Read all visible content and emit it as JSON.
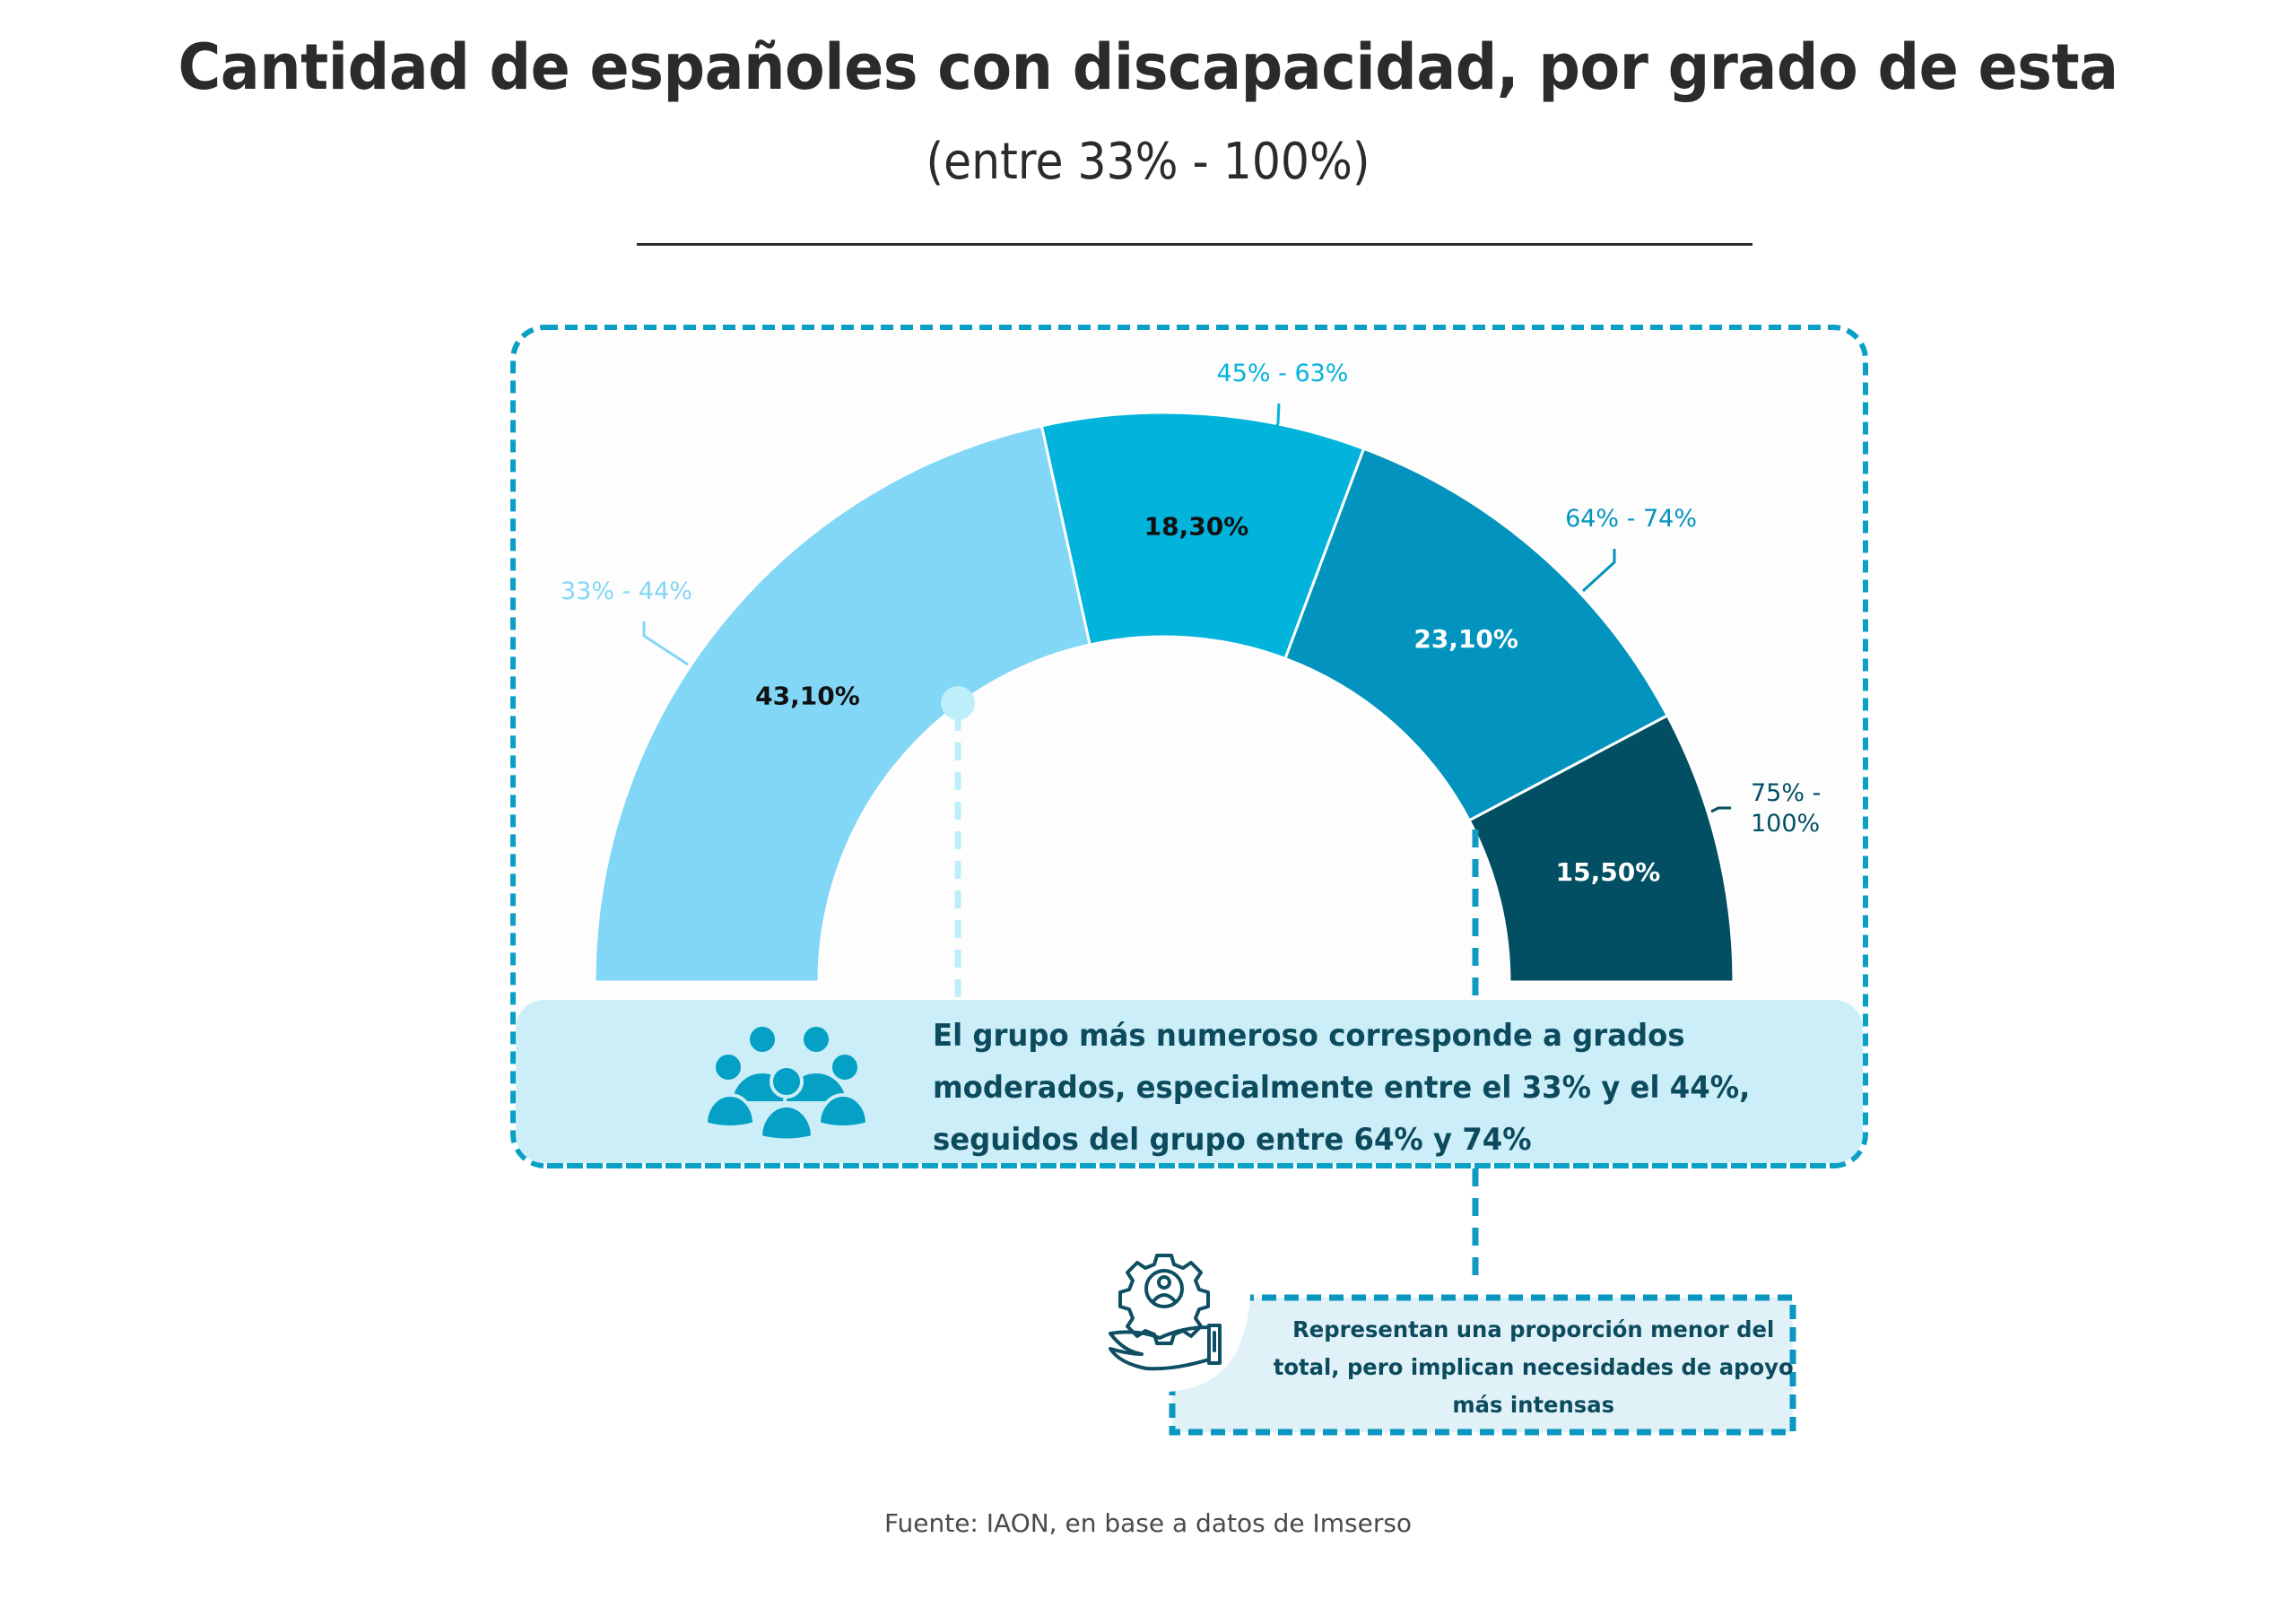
{
  "header": {
    "title": "Cantidad de españoles con discapacidad, por grado de esta",
    "subtitle": "(entre 33% - 100%)"
  },
  "chart_data": {
    "type": "pie",
    "variant": "semicircle-gauge",
    "title": "Cantidad de españoles con discapacidad, por grado de esta",
    "subtitle": "(entre 33% - 100%)",
    "unit": "%",
    "categories": [
      "33% - 44%",
      "45% - 63%",
      "64% - 74%",
      "75% - 100%"
    ],
    "values": [
      43.1,
      18.3,
      23.1,
      15.5
    ],
    "value_labels": [
      "43,10%",
      "18,30%",
      "23,10%",
      "15,50%"
    ],
    "colors": [
      "#82D7F6",
      "#02B3DC",
      "#0294BE",
      "#024F63"
    ],
    "label_colors": [
      "#82D7F6",
      "#02B3DC",
      "#0294BE",
      "#024F63"
    ],
    "value_label_colors": [
      "#111111",
      "#111111",
      "#ffffff",
      "#ffffff"
    ],
    "legend": "none",
    "category_label_placement": "outside-with-leader-lines"
  },
  "annotations": {
    "main_note": {
      "icon": "people-group-icon",
      "lines": [
        "El grupo más numeroso corresponde a grados",
        "moderados, especialmente entre el 33% y el 44%,",
        "seguidos del grupo entre 64% y 74%"
      ]
    },
    "secondary_note": {
      "icon": "hand-gear-person-icon",
      "lines": [
        "Representan una proporción menor del",
        "total, pero implican necesidades de apoyo",
        "más intensas"
      ]
    }
  },
  "colors": {
    "accent": "#0AA0C6",
    "panel_bg": "#CCEEF8",
    "secondary_panel_bg": "#E0F2F8",
    "dark_text": "#0C4B5E",
    "title_text": "#2B2B2B"
  },
  "footer": {
    "source": "Fuente: IAON, en base a datos de Imserso"
  }
}
